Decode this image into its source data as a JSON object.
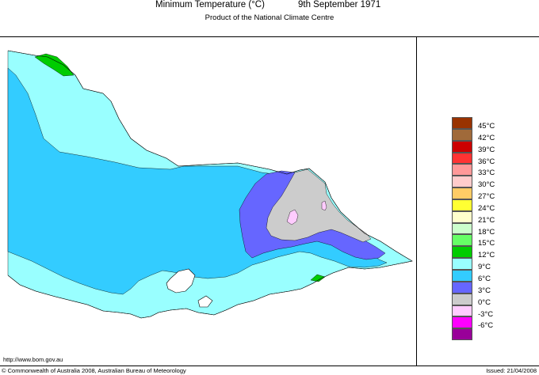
{
  "header": {
    "title": "Minimum Temperature (°C)",
    "date": "9th September 1971",
    "subtitle": "Product of the National Climate Centre"
  },
  "legend": {
    "items": [
      {
        "label": "45°C",
        "color": "#993300"
      },
      {
        "label": "42°C",
        "color": "#a06a3a"
      },
      {
        "label": "39°C",
        "color": "#cc0000"
      },
      {
        "label": "36°C",
        "color": "#ff3333"
      },
      {
        "label": "33°C",
        "color": "#ff9999"
      },
      {
        "label": "30°C",
        "color": "#ffcccc"
      },
      {
        "label": "27°C",
        "color": "#ffcc66"
      },
      {
        "label": "24°C",
        "color": "#ffff33"
      },
      {
        "label": "21°C",
        "color": "#ffffcc"
      },
      {
        "label": "18°C",
        "color": "#ccffcc"
      },
      {
        "label": "15°C",
        "color": "#66ff66"
      },
      {
        "label": "12°C",
        "color": "#00cc00"
      },
      {
        "label": "9°C",
        "color": "#99ffff"
      },
      {
        "label": "6°C",
        "color": "#33ccff"
      },
      {
        "label": "3°C",
        "color": "#6666ff"
      },
      {
        "label": "0°C",
        "color": "#cccccc"
      },
      {
        "label": "-3°C",
        "color": "#ffccff"
      },
      {
        "label": "-6°C",
        "color": "#ff00ff"
      },
      {
        "label": "",
        "color": "#990099"
      }
    ]
  },
  "map": {
    "region_colors": {
      "ocean": "#ffffff",
      "cool_9_12": "#99ffff",
      "cold_6_9": "#33ccff",
      "cold_3_6": "#6666ff",
      "freezing_0_3": "#cccccc",
      "below_zero": "#ffccff",
      "warm_12_15": "#00cc00"
    }
  },
  "footer": {
    "url": "http://www.bom.gov.au",
    "copyright": "© Commonwealth of Australia 2008, Australian Bureau of Meteorology",
    "issued": "Issued: 21/04/2008"
  }
}
